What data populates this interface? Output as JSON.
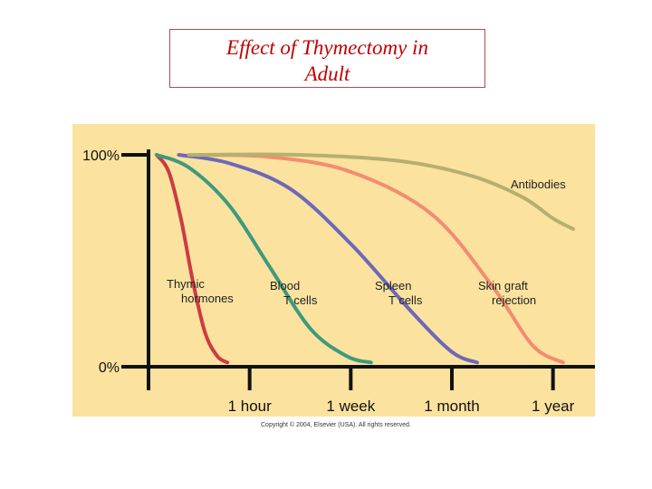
{
  "title_lines": [
    "Effect of Thymectomy in",
    "Adult"
  ],
  "copyright": "Copyright © 2004, Elsevier (USA). All rights reserved.",
  "chart_data": {
    "type": "line",
    "title": "Effect of Thymectomy in Adult",
    "xlabel": "",
    "ylabel": "",
    "y_ticks": [
      "100%",
      "0%"
    ],
    "ylim": [
      0,
      100
    ],
    "x_ticks": [
      "1 hour",
      "1 week",
      "1 month",
      "1 year"
    ],
    "x_tick_positions": [
      1,
      2,
      3,
      4
    ],
    "xlim": [
      0,
      4.2
    ],
    "series": [
      {
        "name": "Thymic hormones",
        "label_lines": [
          "Thymic",
          "hormones"
        ],
        "color": "#cc3b44",
        "x": [
          0.08,
          0.2,
          0.32,
          0.44,
          0.56,
          0.68,
          0.78
        ],
        "y": [
          100,
          92,
          70,
          40,
          16,
          5,
          2
        ]
      },
      {
        "name": "Blood T cells",
        "label_lines": [
          "Blood",
          "T cells"
        ],
        "color": "#3e9a7c",
        "x": [
          0.08,
          0.4,
          0.8,
          1.2,
          1.6,
          1.96,
          2.2
        ],
        "y": [
          100,
          94,
          76,
          47,
          18,
          5,
          2
        ]
      },
      {
        "name": "Spleen T cells",
        "label_lines": [
          "Spleen",
          "T cells"
        ],
        "color": "#6d68b8",
        "x": [
          0.3,
          0.8,
          1.4,
          2.0,
          2.6,
          3.0,
          3.25
        ],
        "y": [
          100,
          96,
          84,
          58,
          26,
          7,
          2
        ]
      },
      {
        "name": "Skin graft rejection",
        "label_lines": [
          "Skin graft",
          "rejection"
        ],
        "color": "#f28d6e",
        "x": [
          0.4,
          1.2,
          2.0,
          2.8,
          3.4,
          3.8,
          4.1
        ],
        "y": [
          100,
          99,
          92,
          72,
          38,
          10,
          2
        ]
      },
      {
        "name": "Antibodies",
        "label_lines": [
          "Antibodies"
        ],
        "color": "#b5b070",
        "x": [
          0.4,
          1.5,
          2.5,
          3.2,
          3.7,
          4.0,
          4.2
        ],
        "y": [
          100,
          100,
          97,
          90,
          80,
          70,
          65
        ]
      }
    ]
  }
}
